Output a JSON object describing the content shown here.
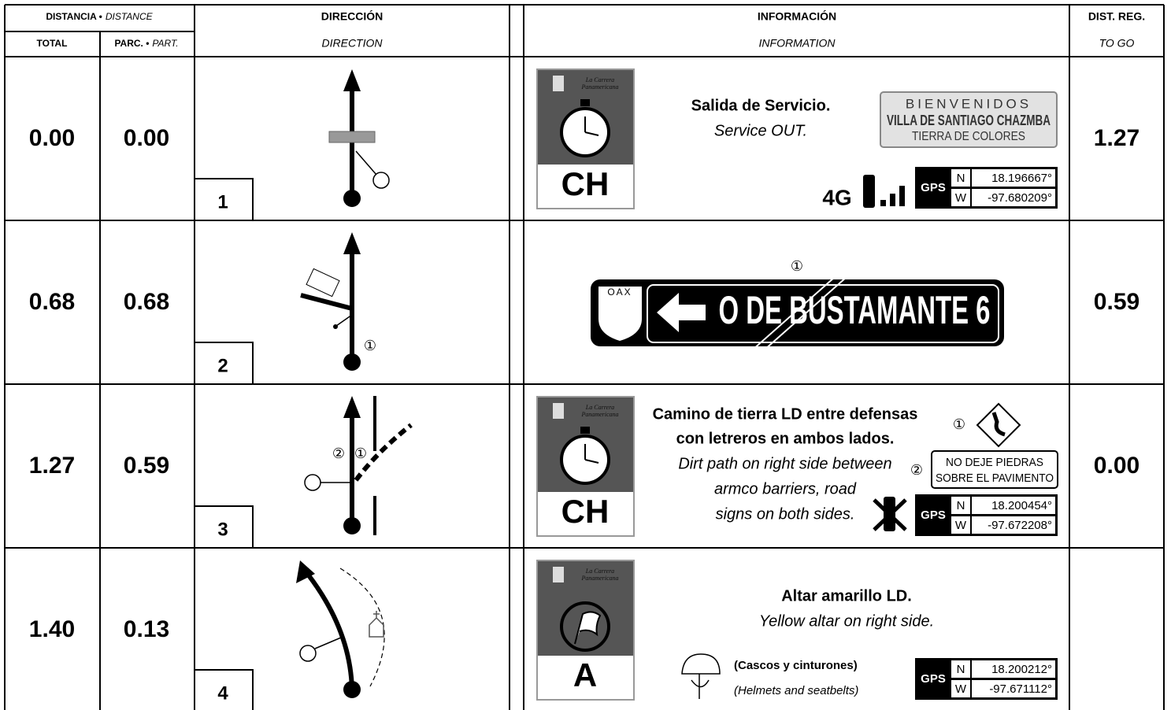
{
  "header": {
    "distance": "DISTANCIA •",
    "distance_en": "DISTANCE",
    "direction": "DIRECCIÓN",
    "information": "INFORMACIÓN",
    "to_go": "DIST. REG.",
    "total": "TOTAL",
    "partial": "PARC. •",
    "partial_en": "PART.",
    "direction_en": "DIRECTION",
    "information_en": "INFORMATION",
    "to_go_en": "TO GO"
  },
  "rows": [
    {
      "number": "1",
      "total": "0.00",
      "partial": "0.00",
      "to_go": "1.27",
      "badge": {
        "logo": [
          "La Carrera",
          "Panamericana"
        ],
        "letter": "CH"
      },
      "text_es": [
        "Salida de Servicio."
      ],
      "text_en": [
        "Service OUT."
      ],
      "sign": [
        "BIENVENIDOS",
        "VILLA DE SANTIAGO CHAZMBA",
        "TIERRA DE COLORES"
      ],
      "network": "4G",
      "gps": {
        "label": "GPS",
        "n_label": "N",
        "n": "18.196667°",
        "w_label": "W",
        "w": "-97.680209°"
      }
    },
    {
      "number": "2",
      "total": "0.68",
      "partial": "0.68",
      "to_go": "0.59",
      "direction_markers": [
        "①"
      ],
      "info_markers": [
        "①"
      ],
      "road_sign": {
        "shield": "OAX",
        "text": "O DE BUSTAMANTE 6"
      }
    },
    {
      "number": "3",
      "total": "1.27",
      "partial": "0.59",
      "to_go": "0.00",
      "direction_markers": [
        "②",
        "①"
      ],
      "badge": {
        "logo": [
          "La Carrera",
          "Panamericana"
        ],
        "letter": "CH"
      },
      "text_es": [
        "Camino de tierra LD entre defensas",
        "con letreros en ambos lados."
      ],
      "text_en": [
        "Dirt path on right side between",
        "armco barriers, road",
        "signs on both sides."
      ],
      "info_markers": [
        "①",
        "②"
      ],
      "sign": [
        "NO DEJE PIEDRAS",
        "SOBRE EL PAVIMENTO"
      ],
      "gps": {
        "label": "GPS",
        "n_label": "N",
        "n": "18.200454°",
        "w_label": "W",
        "w": "-97.672208°"
      }
    },
    {
      "number": "4",
      "total": "1.40",
      "partial": "0.13",
      "badge": {
        "logo": [
          "La Carrera",
          "Panamericana"
        ],
        "letter": "A"
      },
      "text_es": [
        "Altar amarillo LD."
      ],
      "text_en": [
        "Yellow altar on right side."
      ],
      "safety_es": "(Cascos y cinturones)",
      "safety_en": "(Helmets and seatbelts)",
      "gps": {
        "label": "GPS",
        "n_label": "N",
        "n": "18.200212°",
        "w_label": "W",
        "w": "-97.671112°"
      }
    }
  ]
}
